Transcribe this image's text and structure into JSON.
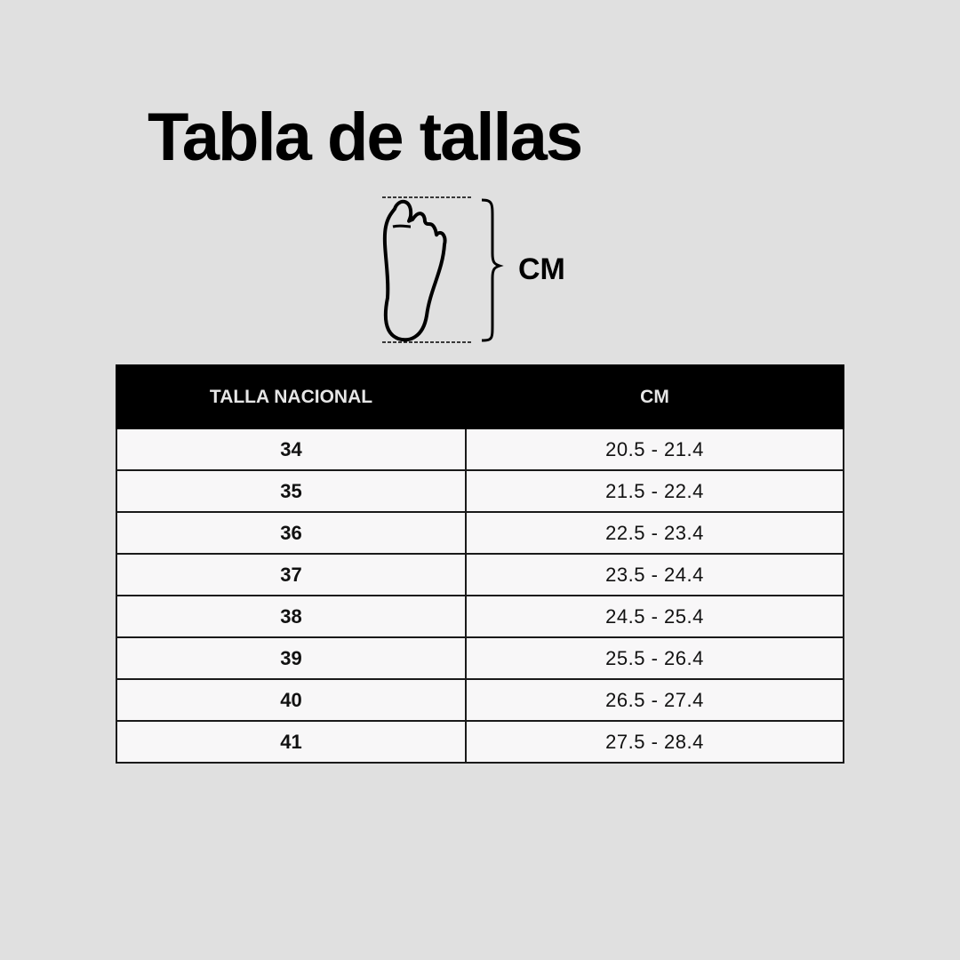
{
  "title": "Tabla de tallas",
  "diagram": {
    "icon": "foot-outline-icon",
    "measure_label": "CM"
  },
  "table": {
    "headers": [
      "TALLA NACIONAL",
      "CM"
    ],
    "rows": [
      {
        "size": "34",
        "cm": "20.5 - 21.4"
      },
      {
        "size": "35",
        "cm": "21.5 - 22.4"
      },
      {
        "size": "36",
        "cm": "22.5 - 23.4"
      },
      {
        "size": "37",
        "cm": "23.5 - 24.4"
      },
      {
        "size": "38",
        "cm": "24.5 - 25.4"
      },
      {
        "size": "39",
        "cm": "25.5 - 26.4"
      },
      {
        "size": "40",
        "cm": "26.5 - 27.4"
      },
      {
        "size": "41",
        "cm": "27.5 - 28.4"
      }
    ]
  }
}
